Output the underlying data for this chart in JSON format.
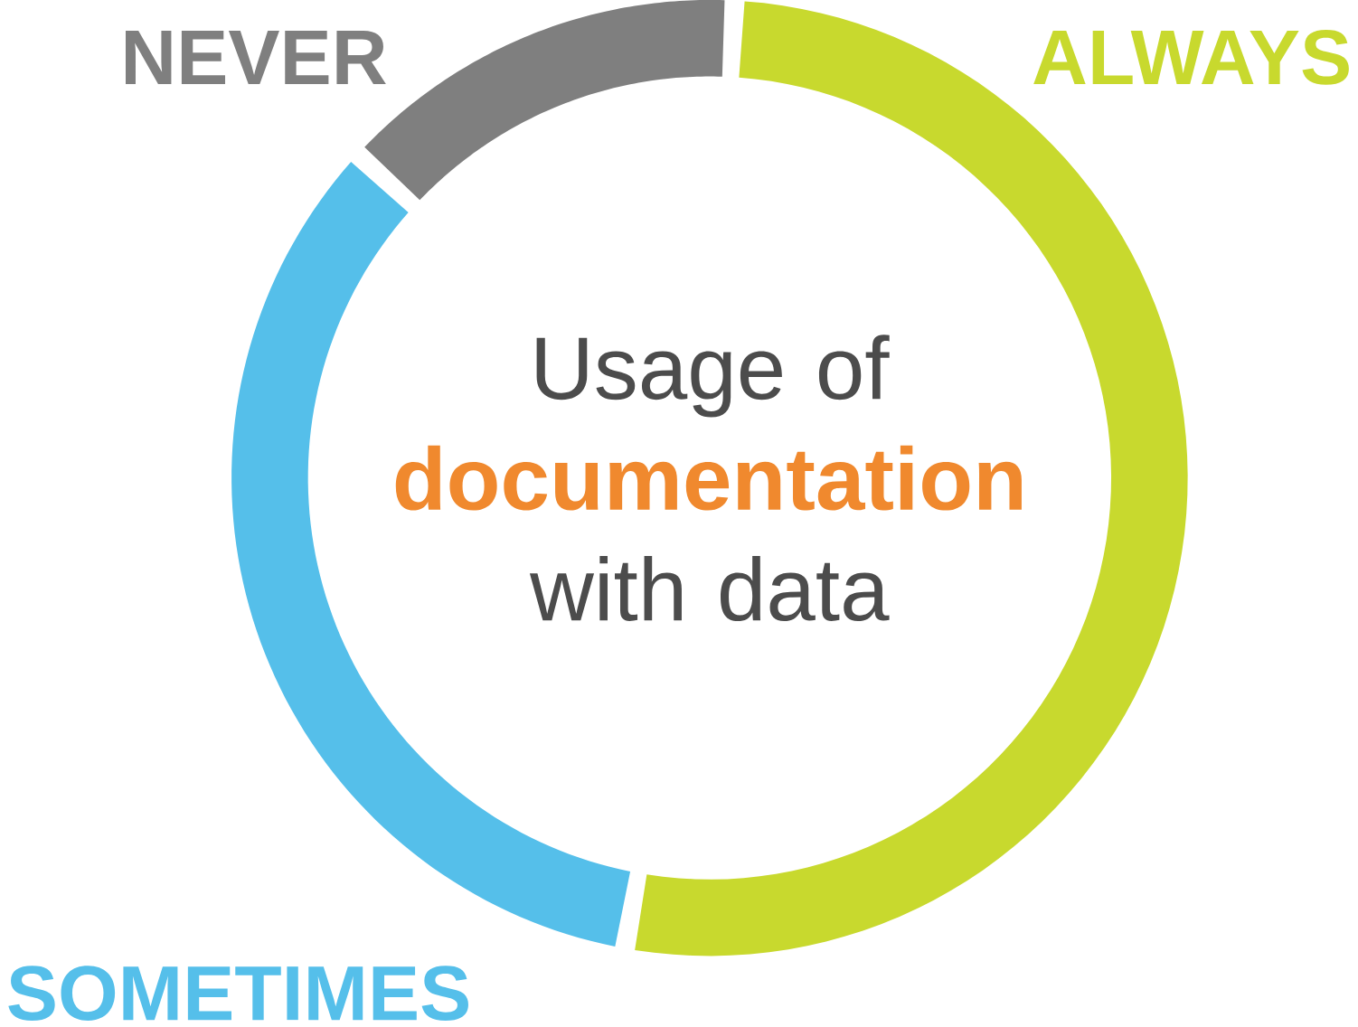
{
  "chart_data": {
    "type": "donut",
    "title": "Usage of **documentation** with data",
    "categories": [
      "ALWAYS",
      "SOMETIMES",
      "NEVER"
    ],
    "values": [
      52,
      34,
      14
    ],
    "colors": [
      "#c8d92e",
      "#55bfea",
      "#7f7f7f"
    ]
  }
}
